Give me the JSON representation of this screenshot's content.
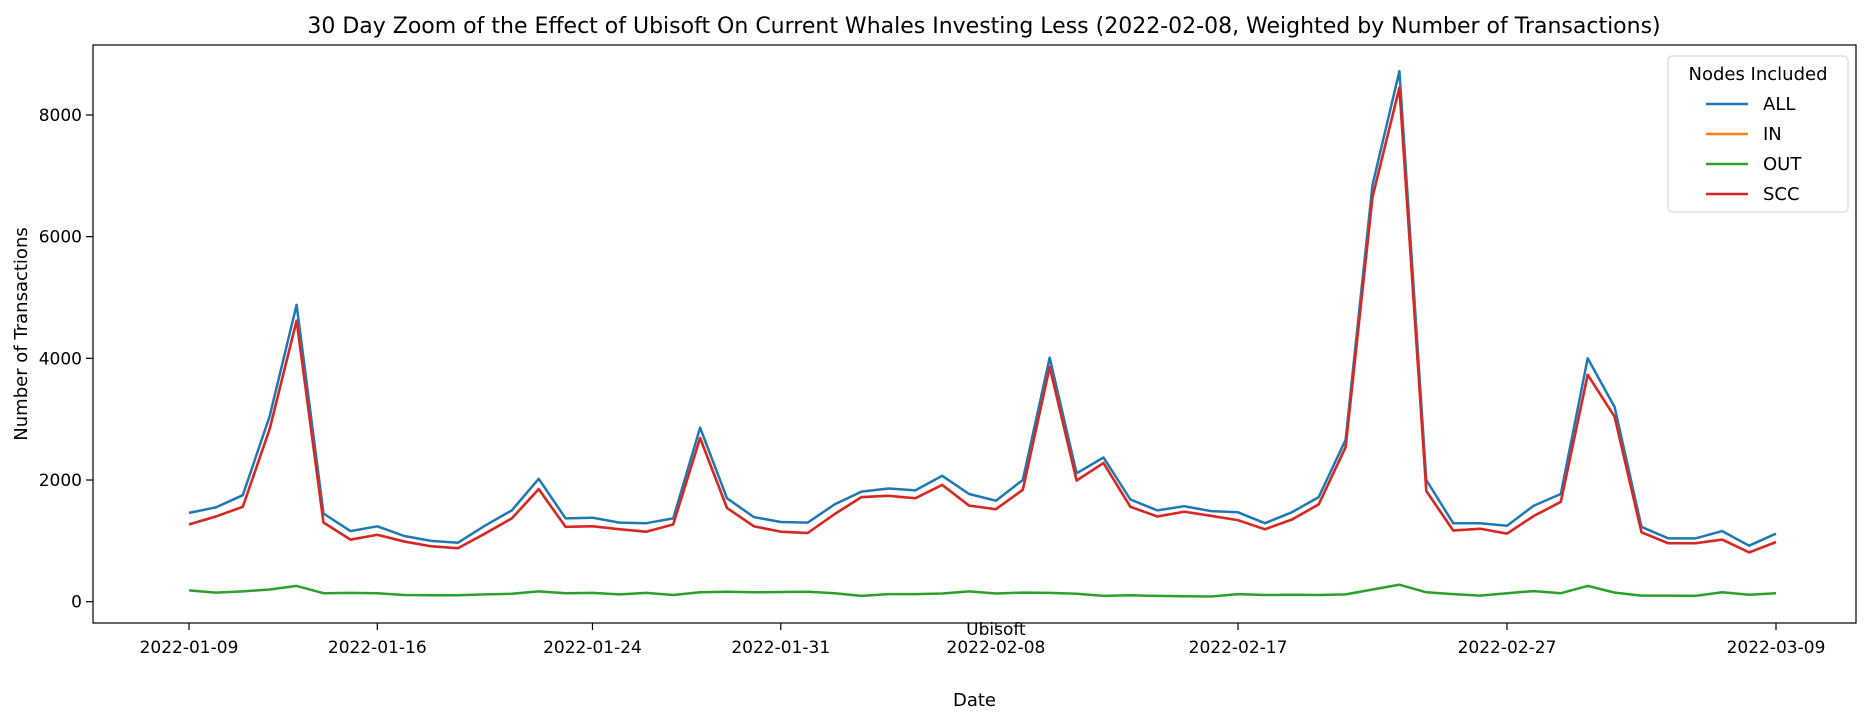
{
  "chart_data": {
    "type": "line",
    "title": "30 Day Zoom of the Effect of Ubisoft On Current Whales Investing Less (2022-02-08, Weighted by Number of Transactions)",
    "xlabel": "Date",
    "ylabel": "Number of Transactions",
    "x_range": [
      "2022-01-09",
      "2022-03-09"
    ],
    "x_ticks": [
      "2022-01-09",
      "2022-01-16",
      "2022-01-24",
      "2022-01-31",
      "2022-02-08",
      "2022-02-17",
      "2022-02-27",
      "2022-03-09"
    ],
    "ylim": [
      -350,
      9150
    ],
    "y_ticks": [
      0,
      2000,
      4000,
      6000,
      8000
    ],
    "grid": false,
    "legend_title": "Nodes Included",
    "legend_position": "top-right",
    "event": {
      "label": "Ubisoft",
      "date": "2022-02-08"
    },
    "x": [
      "2022-01-09",
      "2022-01-10",
      "2022-01-11",
      "2022-01-12",
      "2022-01-13",
      "2022-01-14",
      "2022-01-15",
      "2022-01-16",
      "2022-01-17",
      "2022-01-18",
      "2022-01-19",
      "2022-01-20",
      "2022-01-21",
      "2022-01-22",
      "2022-01-23",
      "2022-01-24",
      "2022-01-25",
      "2022-01-26",
      "2022-01-27",
      "2022-01-28",
      "2022-01-29",
      "2022-01-30",
      "2022-01-31",
      "2022-02-01",
      "2022-02-02",
      "2022-02-03",
      "2022-02-04",
      "2022-02-05",
      "2022-02-06",
      "2022-02-07",
      "2022-02-08",
      "2022-02-09",
      "2022-02-10",
      "2022-02-11",
      "2022-02-12",
      "2022-02-13",
      "2022-02-14",
      "2022-02-15",
      "2022-02-16",
      "2022-02-17",
      "2022-02-18",
      "2022-02-19",
      "2022-02-20",
      "2022-02-21",
      "2022-02-22",
      "2022-02-23",
      "2022-02-24",
      "2022-02-25",
      "2022-02-26",
      "2022-02-27",
      "2022-02-28",
      "2022-03-01",
      "2022-03-02",
      "2022-03-03",
      "2022-03-04",
      "2022-03-05",
      "2022-03-06",
      "2022-03-07",
      "2022-03-08",
      "2022-03-09"
    ],
    "series": [
      {
        "name": "ALL",
        "color": "#1f77b4",
        "values": [
          1460,
          1550,
          1750,
          3050,
          4880,
          1450,
          1160,
          1240,
          1080,
          1000,
          970,
          1250,
          1500,
          2020,
          1370,
          1380,
          1300,
          1290,
          1370,
          2860,
          1700,
          1390,
          1310,
          1300,
          1600,
          1810,
          1860,
          1830,
          2070,
          1770,
          1660,
          2000,
          4010,
          2110,
          2370,
          1680,
          1500,
          1570,
          1490,
          1470,
          1290,
          1470,
          1720,
          2660,
          6850,
          8720,
          2000,
          1290,
          1290,
          1250,
          1580,
          1770,
          4000,
          3200,
          1230,
          1040,
          1040,
          1160,
          920,
          1120
        ]
      },
      {
        "name": "IN",
        "color": "#ff7f0e",
        "values": [
          1270,
          1400,
          1560,
          2840,
          4620,
          1300,
          1020,
          1100,
          990,
          910,
          880,
          1120,
          1370,
          1850,
          1230,
          1240,
          1190,
          1150,
          1270,
          2690,
          1540,
          1240,
          1150,
          1130,
          1440,
          1720,
          1740,
          1700,
          1920,
          1580,
          1520,
          1840,
          3860,
          1990,
          2280,
          1560,
          1400,
          1480,
          1410,
          1340,
          1190,
          1350,
          1600,
          2540,
          6650,
          8450,
          1820,
          1170,
          1200,
          1120,
          1410,
          1640,
          3730,
          3040,
          1140,
          960,
          960,
          1020,
          810,
          980
        ]
      },
      {
        "name": "OUT",
        "color": "#2ca02c",
        "values": [
          185,
          150,
          170,
          200,
          260,
          140,
          145,
          140,
          110,
          105,
          105,
          120,
          130,
          170,
          140,
          145,
          120,
          145,
          110,
          155,
          165,
          155,
          160,
          165,
          140,
          95,
          125,
          125,
          135,
          170,
          135,
          150,
          145,
          130,
          95,
          105,
          95,
          90,
          85,
          125,
          110,
          115,
          110,
          120,
          200,
          280,
          155,
          125,
          100,
          140,
          175,
          140,
          260,
          150,
          100,
          100,
          95,
          155,
          115,
          140
        ]
      },
      {
        "name": "SCC",
        "color": "#d62728",
        "values": [
          1270,
          1400,
          1560,
          2840,
          4620,
          1300,
          1020,
          1100,
          990,
          910,
          880,
          1120,
          1370,
          1850,
          1230,
          1240,
          1190,
          1150,
          1270,
          2690,
          1540,
          1240,
          1150,
          1130,
          1440,
          1720,
          1740,
          1700,
          1920,
          1580,
          1520,
          1840,
          3860,
          1990,
          2280,
          1560,
          1400,
          1480,
          1410,
          1340,
          1190,
          1350,
          1600,
          2540,
          6650,
          8450,
          1820,
          1170,
          1200,
          1120,
          1410,
          1640,
          3730,
          3040,
          1140,
          960,
          960,
          1020,
          810,
          980
        ]
      }
    ]
  }
}
